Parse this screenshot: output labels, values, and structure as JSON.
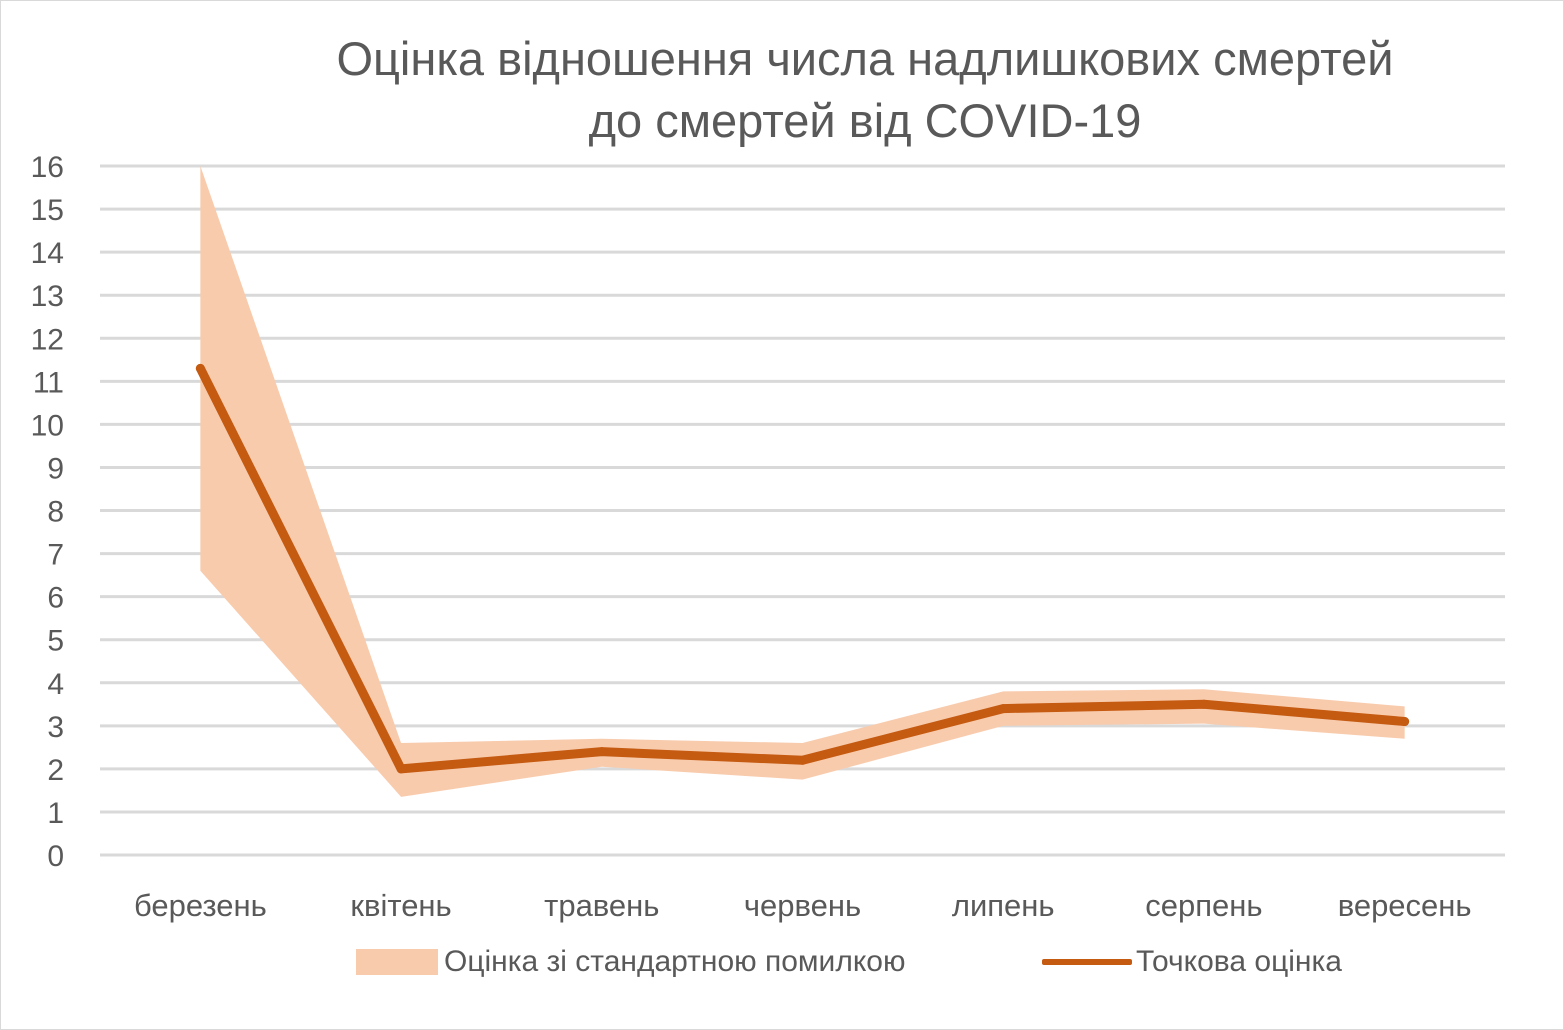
{
  "chart_data": {
    "type": "line",
    "title_lines": [
      "Оцінка відношення числа надлишкових смертей",
      "до смертей від COVID-19"
    ],
    "xlabel": "",
    "ylabel": "",
    "categories": [
      "березень",
      "квітень",
      "травень",
      "червень",
      "липень",
      "серпень",
      "вересень"
    ],
    "ylim": [
      0,
      16
    ],
    "yticks": [
      "0",
      "1",
      "2",
      "3",
      "4",
      "5",
      "6",
      "7",
      "8",
      "9",
      "10",
      "11",
      "12",
      "13",
      "14",
      "15",
      "16"
    ],
    "grid": true,
    "legend_position": "bottom",
    "series": [
      {
        "name": "Оцінка зі стандартною помилкою",
        "kind": "band",
        "lower": [
          6.6,
          1.35,
          2.05,
          1.75,
          3.0,
          3.05,
          2.7
        ],
        "upper": [
          16.0,
          2.6,
          2.7,
          2.6,
          3.8,
          3.85,
          3.45
        ],
        "color": "#f8cbad"
      },
      {
        "name": "Точкова оцінка",
        "kind": "line",
        "values": [
          11.3,
          2.0,
          2.4,
          2.2,
          3.4,
          3.5,
          3.1
        ],
        "color": "#c55a11"
      }
    ]
  }
}
